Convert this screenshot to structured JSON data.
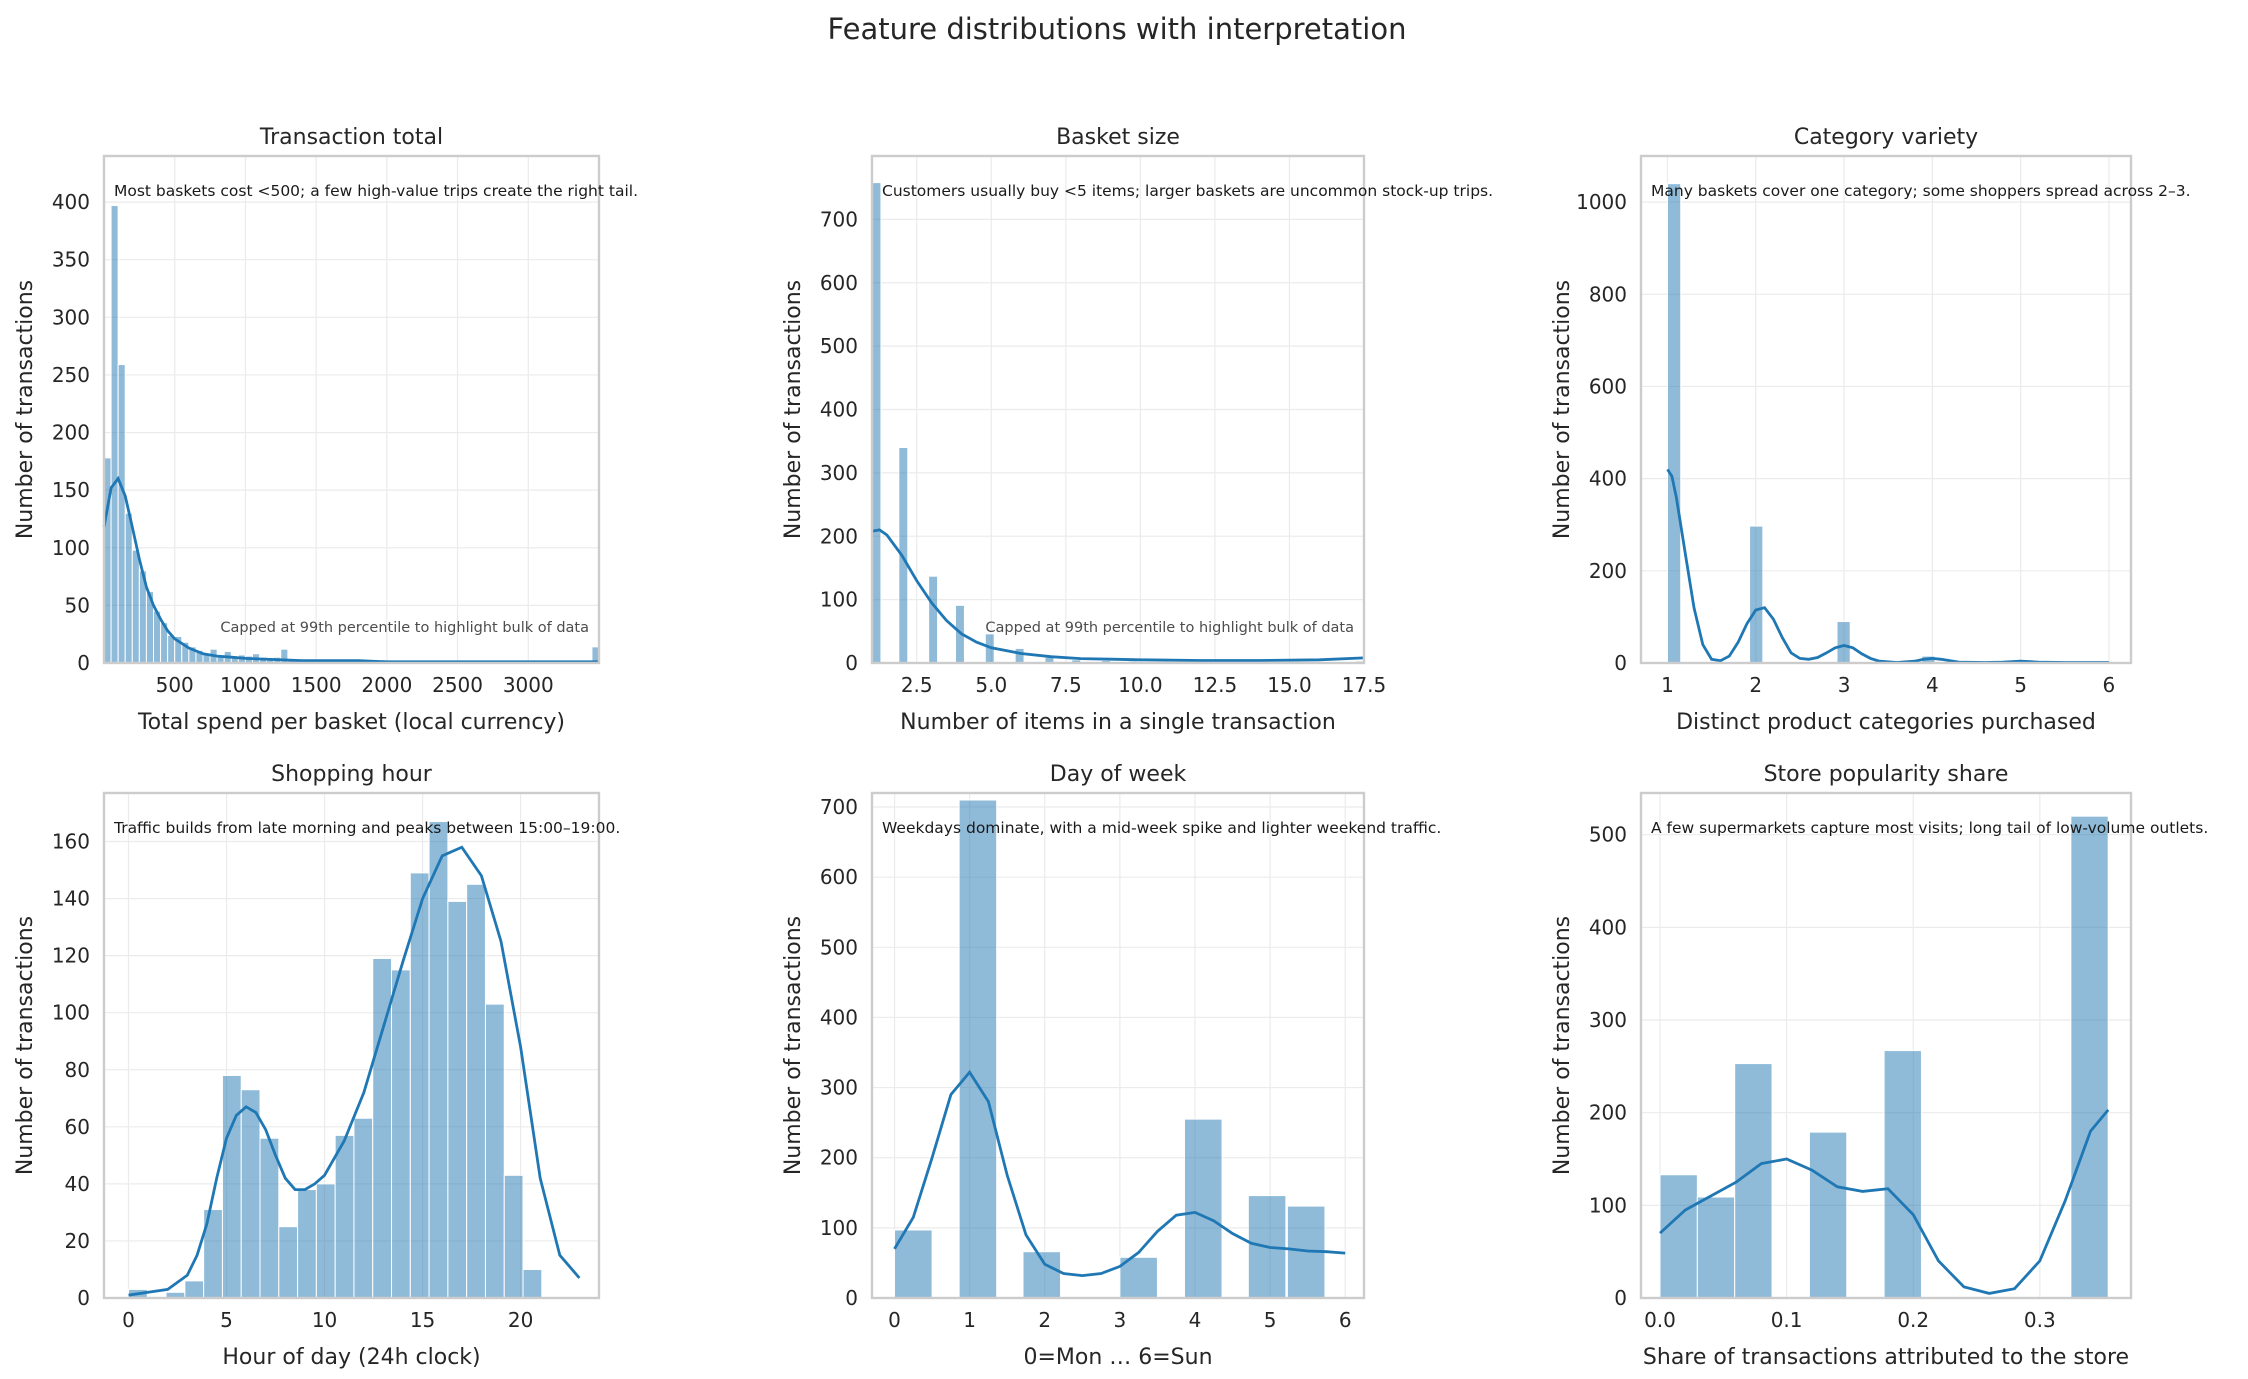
{
  "figure_title": "Feature distributions with interpretation",
  "chart_data": [
    {
      "type": "bar",
      "title": "Transaction total",
      "xlabel": "Total spend per basket (local currency)",
      "ylabel": "Number of transactions",
      "xlim": [
        0,
        3500
      ],
      "ylim": [
        0,
        440
      ],
      "xticks": [
        500,
        1000,
        1500,
        2000,
        2500,
        3000
      ],
      "xtick_labels": [
        "500",
        "1000",
        "1500",
        "2000",
        "2500",
        "3000"
      ],
      "yticks": [
        0,
        50,
        100,
        150,
        200,
        250,
        300,
        350,
        400
      ],
      "ytick_labels": [
        "0",
        "50",
        "100",
        "150",
        "200",
        "250",
        "300",
        "350",
        "400"
      ],
      "bin_edges": [
        0,
        50,
        100,
        150,
        200,
        250,
        300,
        350,
        400,
        450,
        500,
        550,
        600,
        650,
        700,
        750,
        800,
        850,
        900,
        950,
        1000,
        1050,
        1100,
        1150,
        1200,
        1250,
        1300,
        1350,
        1400,
        1450,
        1500,
        1550,
        1600,
        1650,
        1700,
        1750,
        1800,
        1850,
        1900,
        1950,
        2000,
        2050,
        2100,
        2150,
        2200,
        2250,
        2300,
        2350,
        2400,
        2450,
        2500,
        2550,
        2600,
        2650,
        2700,
        2750,
        2800,
        2850,
        2900,
        2950,
        3000,
        3050,
        3100,
        3150,
        3200,
        3250,
        3300,
        3350,
        3400,
        3450,
        3500
      ],
      "counts": [
        178,
        397,
        259,
        130,
        98,
        80,
        62,
        45,
        35,
        24,
        23,
        18,
        14,
        11,
        8,
        12,
        6,
        10,
        5,
        7,
        6,
        8,
        5,
        4,
        5,
        12,
        3,
        3,
        2,
        2,
        3,
        2,
        2,
        1,
        2,
        1,
        1,
        2,
        1,
        1,
        1,
        1,
        1,
        0,
        1,
        1,
        0,
        1,
        0,
        1,
        0,
        1,
        0,
        0,
        1,
        0,
        0,
        1,
        0,
        0,
        1,
        0,
        0,
        0,
        1,
        0,
        0,
        0,
        0,
        14
      ],
      "kde": {
        "x": [
          0,
          50,
          100,
          150,
          200,
          250,
          300,
          350,
          400,
          450,
          500,
          600,
          700,
          800,
          900,
          1000,
          1200,
          1400,
          1600,
          1800,
          2000,
          2500,
          3000,
          3500
        ],
        "y": [
          118,
          152,
          160,
          145,
          118,
          90,
          66,
          50,
          38,
          28,
          21,
          13,
          8,
          6,
          5,
          4,
          3,
          2,
          2,
          2,
          1,
          1,
          1,
          1
        ]
      },
      "annotation": "Most baskets cost <500; a few high-value trips create the right tail.",
      "note": "Capped at 99th percentile to highlight bulk of data",
      "grid": true
    },
    {
      "type": "bar",
      "title": "Basket size",
      "xlabel": "Number of items in a single transaction",
      "ylabel": "Number of transactions",
      "xlim": [
        1,
        17.5
      ],
      "ylim": [
        0,
        800
      ],
      "xticks": [
        2.5,
        5,
        7.5,
        10,
        12.5,
        15,
        17.5
      ],
      "xtick_labels": [
        "2.5",
        "5.0",
        "7.5",
        "10.0",
        "12.5",
        "15.0",
        "17.5"
      ],
      "yticks": [
        0,
        100,
        200,
        300,
        400,
        500,
        600,
        700
      ],
      "ytick_labels": [
        "0",
        "100",
        "200",
        "300",
        "400",
        "500",
        "600",
        "700"
      ],
      "bars": [
        {
          "x0": 1.0,
          "x1": 1.3,
          "count": 758
        },
        {
          "x0": 1.9,
          "x1": 2.2,
          "count": 340
        },
        {
          "x0": 2.9,
          "x1": 3.2,
          "count": 137
        },
        {
          "x0": 3.8,
          "x1": 4.1,
          "count": 91
        },
        {
          "x0": 4.8,
          "x1": 5.1,
          "count": 46
        },
        {
          "x0": 5.8,
          "x1": 6.1,
          "count": 23
        },
        {
          "x0": 6.8,
          "x1": 7.1,
          "count": 9
        },
        {
          "x0": 7.7,
          "x1": 8.0,
          "count": 5
        },
        {
          "x0": 8.7,
          "x1": 9.0,
          "count": 4
        },
        {
          "x0": 9.6,
          "x1": 9.9,
          "count": 3
        },
        {
          "x0": 10.6,
          "x1": 10.9,
          "count": 2
        },
        {
          "x0": 11.6,
          "x1": 11.9,
          "count": 2
        },
        {
          "x0": 12.5,
          "x1": 12.8,
          "count": 1
        },
        {
          "x0": 13.5,
          "x1": 13.8,
          "count": 1
        },
        {
          "x0": 14.4,
          "x1": 14.7,
          "count": 1
        },
        {
          "x0": 15.4,
          "x1": 15.7,
          "count": 1
        },
        {
          "x0": 16.4,
          "x1": 16.7,
          "count": 1
        },
        {
          "x0": 17.2,
          "x1": 17.5,
          "count": 3
        }
      ],
      "kde": {
        "x": [
          1,
          1.25,
          1.5,
          2,
          2.5,
          3,
          3.5,
          4,
          4.5,
          5,
          6,
          7,
          8,
          9,
          10,
          12,
          14,
          16,
          17.5
        ],
        "y": [
          208,
          210,
          202,
          170,
          130,
          95,
          67,
          46,
          33,
          24,
          15,
          10,
          7,
          6,
          5,
          4,
          4,
          5,
          8
        ]
      },
      "annotation": "Customers usually buy <5 items; larger baskets are uncommon stock-up trips.",
      "note": "Capped at 99th percentile to highlight bulk of data",
      "grid": true
    },
    {
      "type": "bar",
      "title": "Category variety",
      "xlabel": "Distinct product categories purchased",
      "ylabel": "Number of transactions",
      "xlim": [
        0.7,
        6.25
      ],
      "ylim": [
        0,
        1100
      ],
      "xticks": [
        1,
        2,
        3,
        4,
        5,
        6
      ],
      "xtick_labels": [
        "1",
        "2",
        "3",
        "4",
        "5",
        "6"
      ],
      "yticks": [
        0,
        200,
        400,
        600,
        800,
        1000
      ],
      "ytick_labels": [
        "0",
        "200",
        "400",
        "600",
        "800",
        "1000"
      ],
      "bars": [
        {
          "x0": 1.0,
          "x1": 1.15,
          "count": 1040
        },
        {
          "x0": 1.93,
          "x1": 2.08,
          "count": 297
        },
        {
          "x0": 2.92,
          "x1": 3.07,
          "count": 90
        },
        {
          "x0": 3.88,
          "x1": 4.03,
          "count": 15
        },
        {
          "x0": 4.86,
          "x1": 5.01,
          "count": 4
        },
        {
          "x0": 5.85,
          "x1": 6.0,
          "count": 1
        }
      ],
      "kde": {
        "x": [
          1,
          1.05,
          1.1,
          1.2,
          1.3,
          1.4,
          1.5,
          1.6,
          1.7,
          1.8,
          1.9,
          2,
          2.1,
          2.2,
          2.3,
          2.4,
          2.5,
          2.6,
          2.7,
          2.8,
          2.9,
          3,
          3.1,
          3.2,
          3.3,
          3.4,
          3.6,
          3.8,
          3.9,
          4,
          4.1,
          4.3,
          4.6,
          4.8,
          5,
          5.2,
          5.5,
          6
        ],
        "y": [
          420,
          405,
          360,
          240,
          120,
          40,
          8,
          5,
          15,
          45,
          85,
          115,
          120,
          95,
          55,
          22,
          10,
          8,
          12,
          22,
          33,
          38,
          33,
          20,
          10,
          4,
          1,
          4,
          8,
          10,
          8,
          2,
          1,
          2,
          4,
          2,
          1,
          1
        ]
      },
      "annotation": "Many baskets cover one category; some shoppers spread across 2–3.",
      "grid": true
    },
    {
      "type": "bar",
      "title": "Shopping hour",
      "xlabel": "Hour of day (24h clock)",
      "ylabel": "Number of transactions",
      "xlim": [
        -1.25,
        24
      ],
      "ylim": [
        0,
        177
      ],
      "xticks": [
        0,
        5,
        10,
        15,
        20
      ],
      "xtick_labels": [
        "0",
        "5",
        "10",
        "15",
        "20"
      ],
      "yticks": [
        0,
        20,
        40,
        60,
        80,
        100,
        120,
        140,
        160
      ],
      "ytick_labels": [
        "0",
        "20",
        "40",
        "60",
        "80",
        "100",
        "120",
        "140",
        "160"
      ],
      "bin_edges": [
        0,
        0.958,
        1.917,
        2.875,
        3.833,
        4.792,
        5.75,
        6.708,
        7.667,
        8.625,
        9.583,
        10.542,
        11.5,
        12.458,
        13.417,
        14.375,
        15.333,
        16.292,
        17.25,
        18.208,
        19.167,
        20.125,
        21.083,
        22.042,
        23.0
      ],
      "counts": [
        3,
        0,
        2,
        6,
        31,
        78,
        73,
        56,
        25,
        38,
        40,
        57,
        63,
        119,
        115,
        149,
        167,
        139,
        145,
        103,
        43,
        10,
        0,
        0
      ],
      "kde": {
        "x": [
          0,
          1,
          2,
          3,
          3.5,
          4,
          4.5,
          5,
          5.5,
          6,
          6.5,
          7,
          7.5,
          8,
          8.5,
          9,
          9.5,
          10,
          11,
          12,
          13,
          14,
          15,
          16,
          17,
          18,
          19,
          20,
          20.5,
          21,
          22,
          23
        ],
        "y": [
          1,
          2,
          3,
          8,
          15,
          26,
          42,
          56,
          64,
          67,
          65,
          59,
          50,
          42,
          38,
          38,
          40,
          43,
          55,
          72,
          95,
          118,
          140,
          155,
          158,
          148,
          125,
          88,
          65,
          42,
          15,
          7
        ]
      },
      "annotation": "Traffic builds from late morning and peaks between 15:00–19:00.",
      "grid": true
    },
    {
      "type": "bar",
      "title": "Day of week",
      "xlabel": "0=Mon … 6=Sun",
      "ylabel": "Number of transactions",
      "xlim": [
        -0.3,
        6.25
      ],
      "ylim": [
        0,
        720
      ],
      "xticks": [
        0,
        1,
        2,
        3,
        4,
        5,
        6
      ],
      "xtick_labels": [
        "0",
        "1",
        "2",
        "3",
        "4",
        "5",
        "6"
      ],
      "yticks": [
        0,
        100,
        200,
        300,
        400,
        500,
        600,
        700
      ],
      "ytick_labels": [
        "0",
        "100",
        "200",
        "300",
        "400",
        "500",
        "600",
        "700"
      ],
      "bars": [
        {
          "x0": 0.0,
          "x1": 0.5,
          "count": 97
        },
        {
          "x0": 0.86,
          "x1": 1.36,
          "count": 710
        },
        {
          "x0": 1.71,
          "x1": 2.21,
          "count": 66
        },
        {
          "x0": 3.0,
          "x1": 3.5,
          "count": 58
        },
        {
          "x0": 3.86,
          "x1": 4.36,
          "count": 255
        },
        {
          "x0": 4.71,
          "x1": 5.21,
          "count": 146
        },
        {
          "x0": 5.23,
          "x1": 5.73,
          "count": 131
        }
      ],
      "kde": {
        "x": [
          0,
          0.25,
          0.5,
          0.75,
          1,
          1.25,
          1.5,
          1.75,
          2,
          2.25,
          2.5,
          2.75,
          3,
          3.25,
          3.5,
          3.75,
          4,
          4.25,
          4.5,
          4.75,
          5,
          5.25,
          5.5,
          5.75,
          6
        ],
        "y": [
          70,
          115,
          200,
          290,
          322,
          280,
          175,
          90,
          48,
          35,
          32,
          35,
          45,
          65,
          95,
          118,
          122,
          110,
          92,
          78,
          72,
          70,
          67,
          66,
          64
        ]
      },
      "annotation": "Weekdays dominate, with a mid-week spike and lighter weekend traffic.",
      "grid": true
    },
    {
      "type": "bar",
      "title": "Store popularity share",
      "xlabel": "Share of transactions attributed to the store",
      "ylabel": "Number of transactions",
      "xlim": [
        -0.015,
        0.372
      ],
      "ylim": [
        0,
        545
      ],
      "xticks": [
        0.0,
        0.1,
        0.2,
        0.3
      ],
      "xtick_labels": [
        "0.0",
        "0.1",
        "0.2",
        "0.3"
      ],
      "yticks": [
        0,
        100,
        200,
        300,
        400,
        500
      ],
      "ytick_labels": [
        "0",
        "100",
        "200",
        "300",
        "400",
        "500"
      ],
      "bars": [
        {
          "x0": 0.0,
          "x1": 0.0295,
          "count": 133
        },
        {
          "x0": 0.0295,
          "x1": 0.059,
          "count": 109
        },
        {
          "x0": 0.059,
          "x1": 0.0885,
          "count": 253
        },
        {
          "x0": 0.118,
          "x1": 0.1475,
          "count": 179
        },
        {
          "x0": 0.177,
          "x1": 0.2065,
          "count": 267
        },
        {
          "x0": 0.3245,
          "x1": 0.354,
          "count": 520
        }
      ],
      "kde": {
        "x": [
          0,
          0.02,
          0.04,
          0.06,
          0.08,
          0.1,
          0.12,
          0.14,
          0.16,
          0.18,
          0.2,
          0.22,
          0.24,
          0.26,
          0.28,
          0.3,
          0.32,
          0.34,
          0.354
        ],
        "y": [
          70,
          95,
          110,
          125,
          145,
          150,
          138,
          120,
          115,
          118,
          90,
          40,
          12,
          5,
          10,
          40,
          105,
          180,
          203
        ]
      },
      "annotation": "A few supermarkets capture most visits; long tail of low-volume outlets.",
      "grid": true
    }
  ]
}
